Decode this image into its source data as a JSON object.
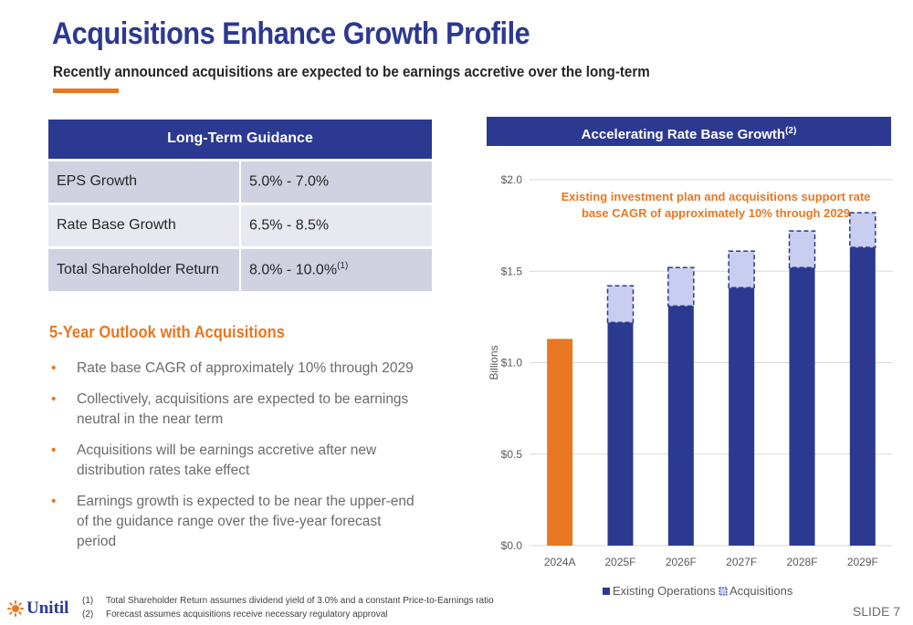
{
  "header": {
    "title": "Acquisitions Enhance Growth Profile",
    "subtitle": "Recently announced acquisitions are expected to be earnings accretive over the long-term",
    "accent_color": "#e87722",
    "brand_color": "#2b3990"
  },
  "guidance": {
    "title": "Long-Term Guidance",
    "rows": [
      {
        "label": "EPS Growth",
        "value": "5.0% - 7.0%",
        "note": ""
      },
      {
        "label": "Rate Base Growth",
        "value": "6.5% - 8.5%",
        "note": ""
      },
      {
        "label": "Total Shareholder Return",
        "value": "8.0% - 10.0%",
        "note": "(1)"
      }
    ]
  },
  "outlook": {
    "heading": "5-Year Outlook with Acquisitions",
    "bullet_glyph": "•",
    "bullets": [
      "Rate base CAGR of approximately 10% through 2029",
      "Collectively, acquisitions are expected to be earnings neutral in the near term",
      "Acquisitions will be earnings accretive after new distribution rates take effect",
      "Earnings growth is expected to be near the upper-end of the guidance range over the five-year forecast period"
    ]
  },
  "chart_header": {
    "title": "Accelerating Rate Base Growth",
    "note": "(2)"
  },
  "chart_data": {
    "type": "bar",
    "stacked": true,
    "title": "Accelerating Rate Base Growth(2)",
    "ylabel": "Billions",
    "ylim": [
      0,
      2.0
    ],
    "yticks": [
      0,
      0.5,
      1.0,
      1.5,
      2.0
    ],
    "ytick_labels": [
      "$0.0",
      "$0.5",
      "$1.0",
      "$1.5",
      "$2.0"
    ],
    "grid": true,
    "legend_position": "bottom",
    "categories": [
      "2024A",
      "2025F",
      "2026F",
      "2027F",
      "2028F",
      "2029F"
    ],
    "series": [
      {
        "name": "Existing Operations",
        "values": [
          1.13,
          1.22,
          1.31,
          1.41,
          1.52,
          1.63
        ],
        "color": "#2b3990",
        "first_color": "#e87722"
      },
      {
        "name": "Acquisitions",
        "values": [
          0,
          0.2,
          0.21,
          0.2,
          0.2,
          0.19
        ],
        "color": "#c9cdef",
        "border": "#2b3990"
      }
    ],
    "annotation": "Existing investment plan and acquisitions support rate base CAGR of approximately 10% through 2029",
    "annotation_color": "#e87722"
  },
  "footnotes": [
    {
      "num": "(1)",
      "text": "Total Shareholder Return assumes dividend yield of 3.0% and a constant Price-to-Earnings ratio"
    },
    {
      "num": "(2)",
      "text": "Forecast assumes acquisitions receive necessary regulatory approval"
    }
  ],
  "footer": {
    "logo": "Unitil",
    "slide": "SLIDE 7"
  }
}
